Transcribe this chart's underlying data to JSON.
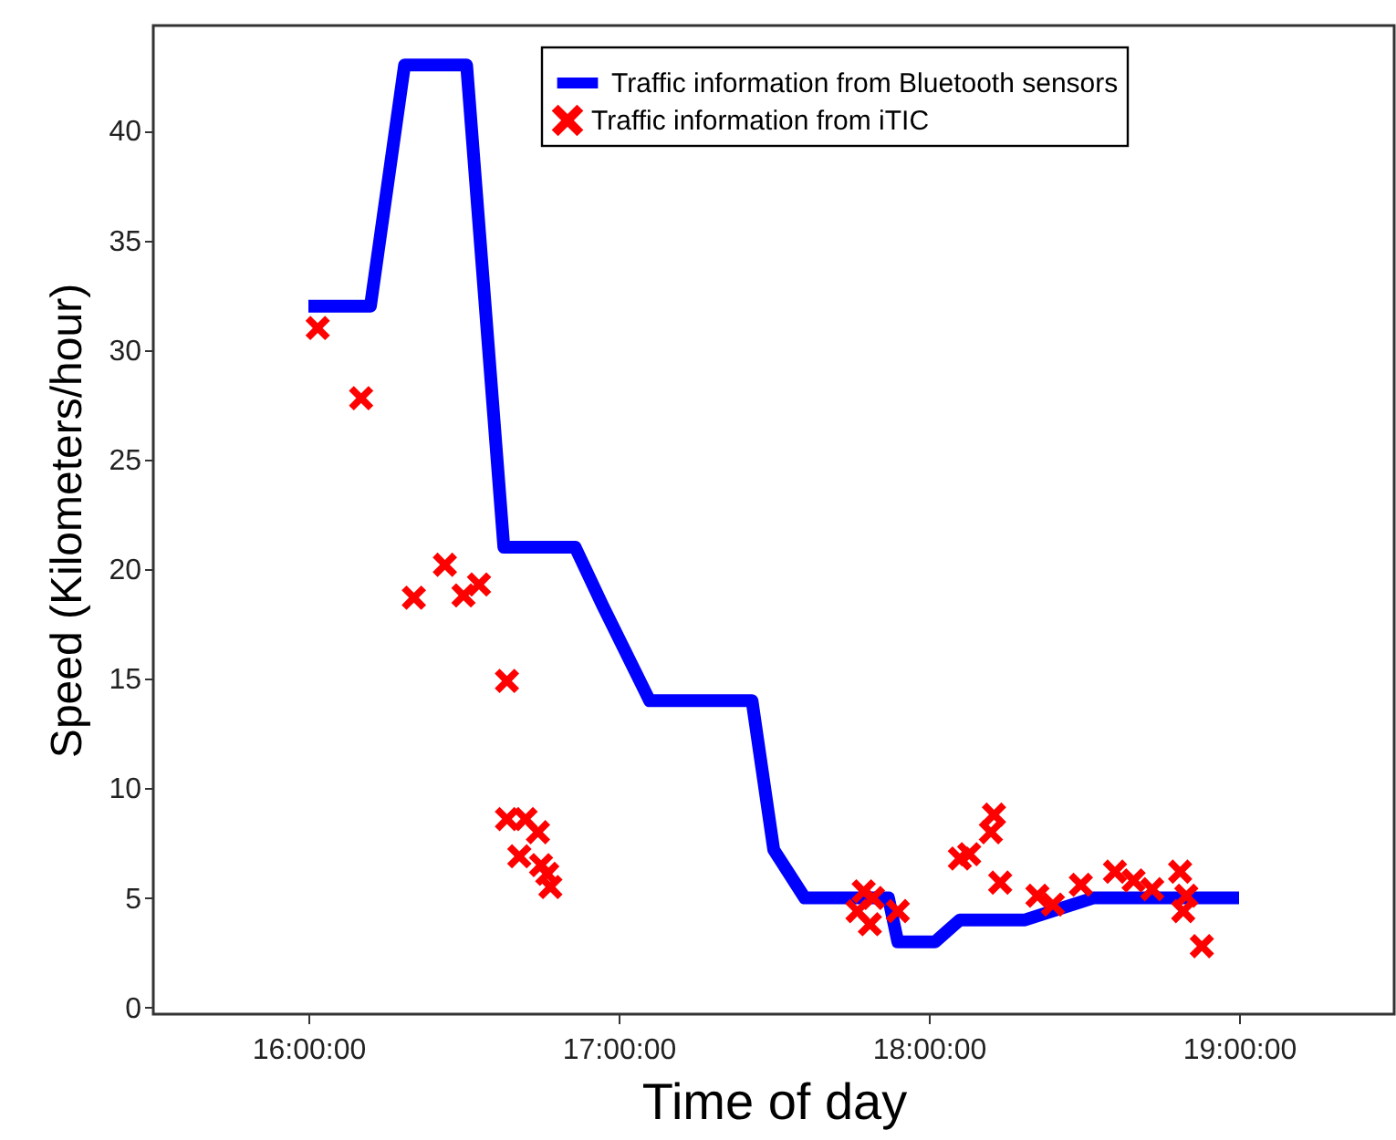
{
  "chart_data": {
    "type": "line",
    "xlabel": "Time of day",
    "ylabel": "Speed (Kilometers/hour)",
    "xlim": [
      15.5,
      19.5
    ],
    "xticks": [
      {
        "value": 16,
        "label": "16:00:00"
      },
      {
        "value": 17,
        "label": "17:00:00"
      },
      {
        "value": 18,
        "label": "18:00:00"
      },
      {
        "value": 19,
        "label": "19:00:00"
      }
    ],
    "ylim": [
      -0.3,
      44.8
    ],
    "yticks": [
      0,
      5,
      10,
      15,
      20,
      25,
      30,
      35,
      40
    ],
    "grid": false,
    "legend": "top right",
    "series": [
      {
        "name": "Traffic information from Bluetooth sensors",
        "type": "line",
        "color": "#0000ff",
        "line_style": "solid",
        "marker": "none",
        "x": [
          16.0,
          16.2,
          16.31,
          16.51,
          16.63,
          16.86,
          16.95,
          17.1,
          17.43,
          17.5,
          17.6,
          17.87,
          17.9,
          18.02,
          18.1,
          18.31,
          18.53,
          19.0
        ],
        "values": [
          32,
          32,
          43,
          43,
          21,
          21,
          18.3,
          14,
          14,
          7.2,
          5,
          5,
          3,
          3,
          4,
          4,
          5,
          5
        ]
      },
      {
        "name": "Traffic information from iTIC",
        "type": "scatter",
        "color": "#ff0000",
        "marker": "cross",
        "x": [
          16.03,
          16.17,
          16.34,
          16.44,
          16.5,
          16.55,
          16.64,
          16.64,
          16.7,
          16.68,
          16.74,
          16.77,
          16.78,
          16.75,
          17.77,
          17.79,
          17.81,
          17.82,
          17.9,
          18.1,
          18.13,
          18.2,
          18.21,
          18.23,
          18.35,
          18.4,
          18.49,
          18.6,
          18.66,
          18.72,
          18.81,
          18.82,
          18.83,
          18.88
        ],
        "values": [
          31,
          27.8,
          18.7,
          20.2,
          18.8,
          19.3,
          14.9,
          8.6,
          8.6,
          6.9,
          8,
          6.1,
          5.5,
          6.5,
          4.4,
          5.3,
          3.8,
          5,
          4.4,
          6.8,
          7,
          8,
          8.8,
          5.7,
          5.1,
          4.7,
          5.6,
          6.2,
          5.8,
          5.4,
          6.2,
          4.4,
          5.1,
          2.8
        ]
      }
    ]
  }
}
